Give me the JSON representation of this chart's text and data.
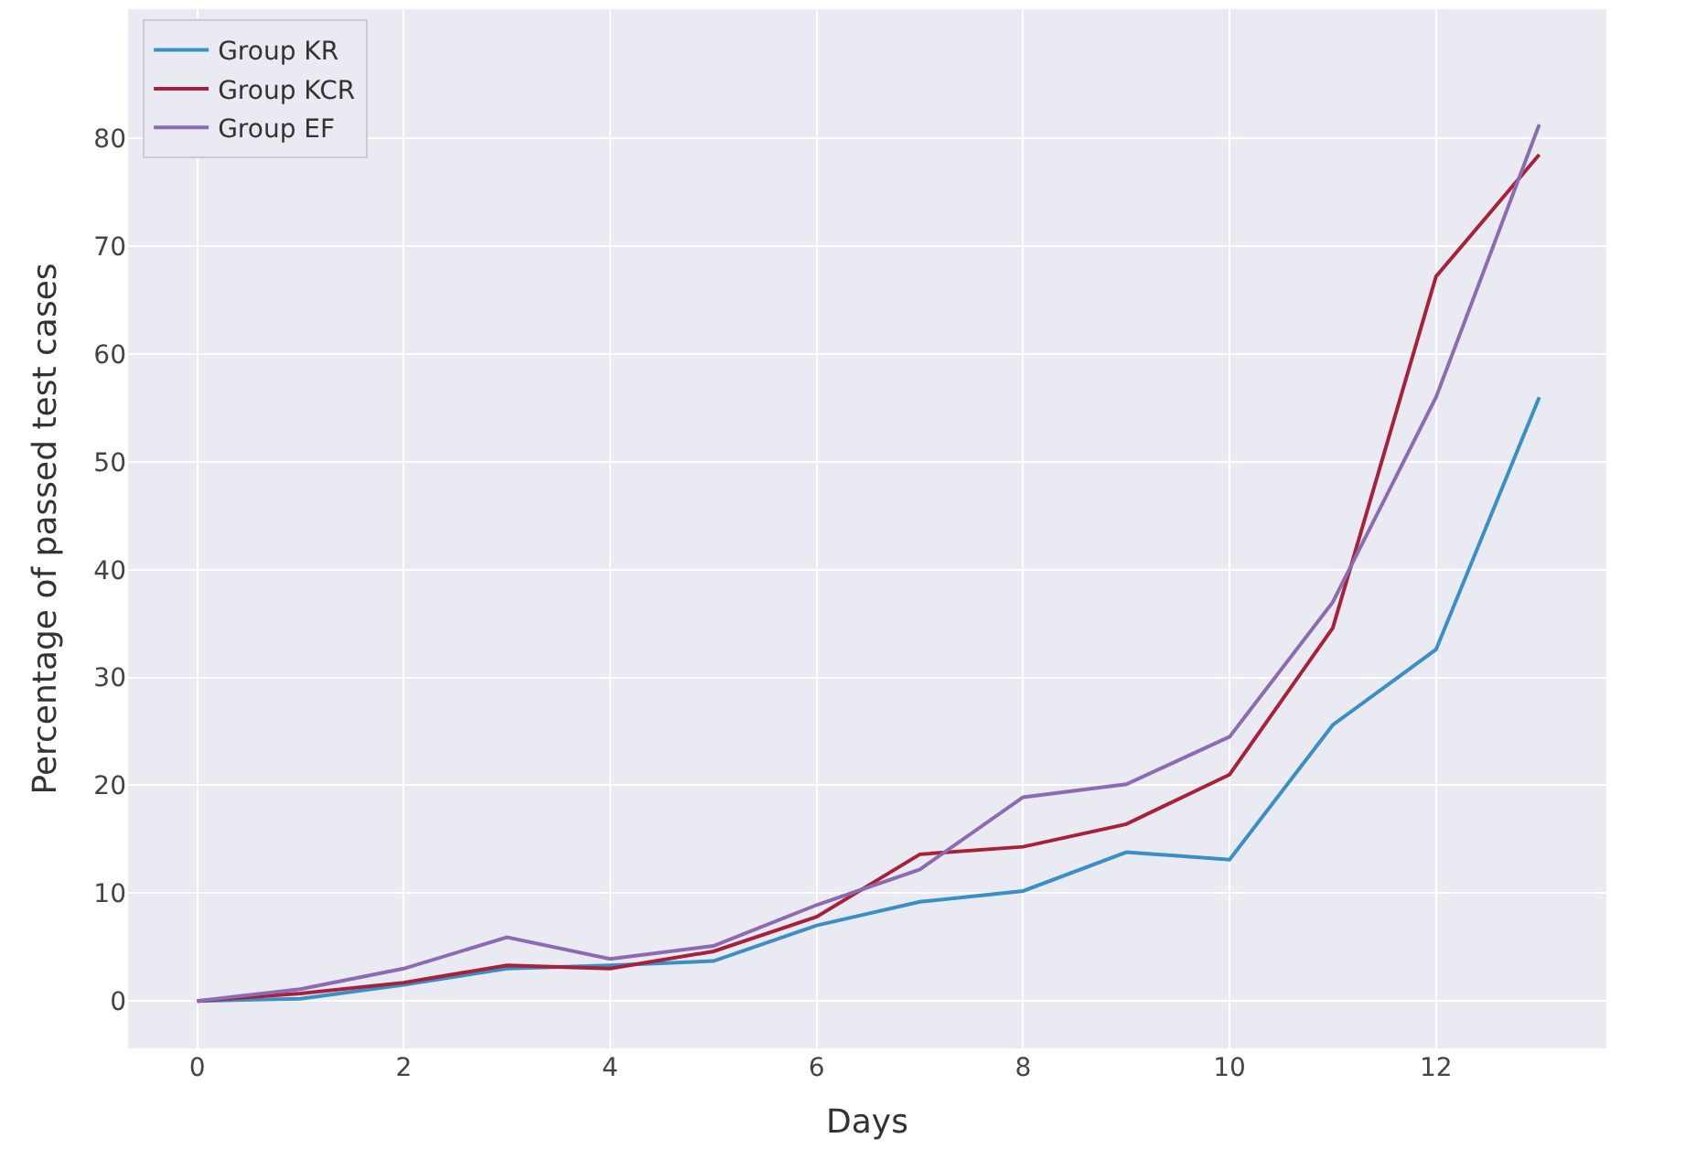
{
  "chart_data": {
    "type": "line",
    "xlabel": "Days",
    "ylabel": "Percentage of passed test cases",
    "x": [
      0,
      1,
      2,
      3,
      4,
      5,
      6,
      7,
      8,
      9,
      10,
      11,
      12,
      13
    ],
    "series": [
      {
        "name": "Group KR",
        "color": "#3a8fc4",
        "values": [
          0,
          0.2,
          1.5,
          3.0,
          3.3,
          3.7,
          7,
          9.2,
          10.2,
          13.8,
          13.1,
          25.6,
          32.6,
          56
        ]
      },
      {
        "name": "Group KCR",
        "color": "#a8213a",
        "values": [
          0,
          0.7,
          1.7,
          3.3,
          3.0,
          4.6,
          7.8,
          13.6,
          14.3,
          16.4,
          21,
          34.6,
          67.2,
          78.5
        ]
      },
      {
        "name": "Group EF",
        "color": "#8c6bb1",
        "values": [
          0,
          1.1,
          3.0,
          5.9,
          3.9,
          5.1,
          8.9,
          12.2,
          18.9,
          20.1,
          24.5,
          37,
          56,
          81.3
        ]
      }
    ],
    "xlim": [
      -0.67,
      13.65
    ],
    "xticks": [
      0,
      2,
      4,
      6,
      8,
      10,
      12
    ],
    "ylim": [
      -4.4,
      92
    ],
    "yticks": [
      0,
      10,
      20,
      30,
      40,
      50,
      60,
      70,
      80
    ],
    "grid": true,
    "legend": "top left",
    "marker": "none",
    "line_style": "solid"
  }
}
